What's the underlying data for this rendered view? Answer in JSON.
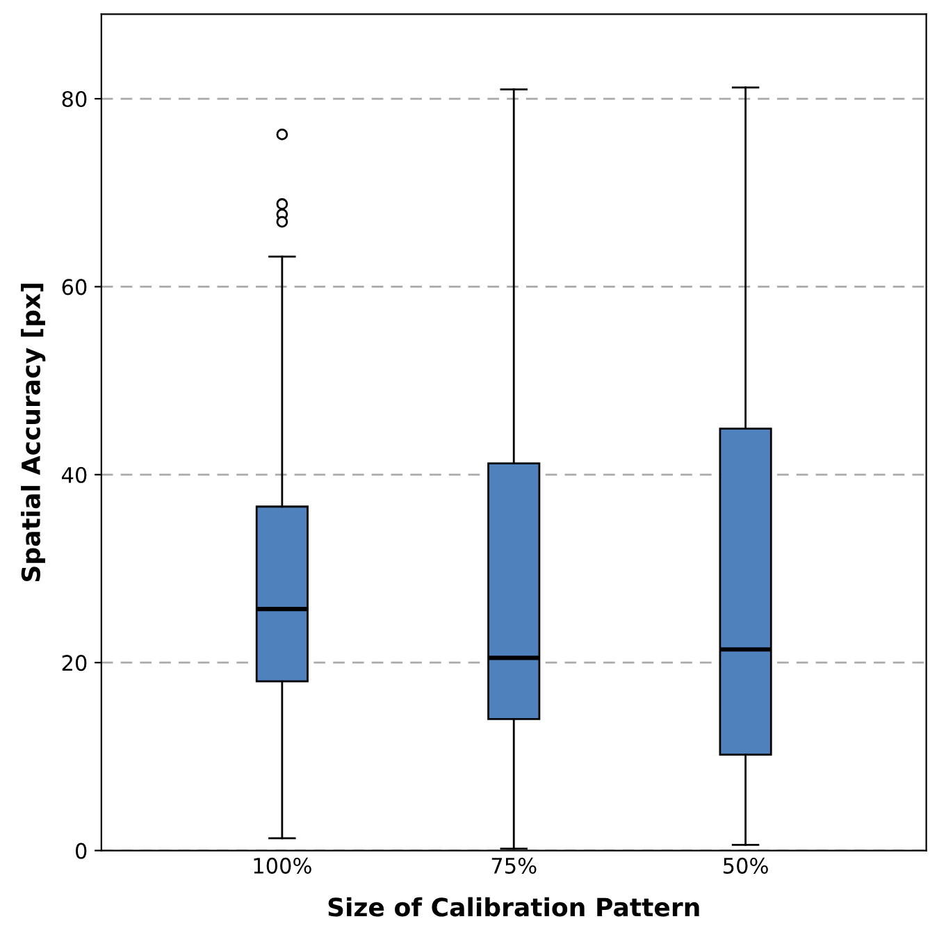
{
  "chart_data": {
    "type": "box",
    "xlabel": "Size of Calibration Pattern",
    "ylabel": "Spatial Accuracy [px]",
    "categories": [
      "100%",
      "75%",
      "50%"
    ],
    "boxes": [
      {
        "low": 1.3,
        "q1": 18.0,
        "median": 25.7,
        "q3": 36.6,
        "high": 63.2,
        "outliers": [
          76.2,
          68.8,
          67.7,
          66.9
        ]
      },
      {
        "low": 0.2,
        "q1": 14.0,
        "median": 20.5,
        "q3": 41.2,
        "high": 81.0
      },
      {
        "low": 0.6,
        "q1": 10.2,
        "median": 21.4,
        "q3": 44.9,
        "high": 81.2
      }
    ],
    "color": "#4f81bd",
    "ylim": [
      0,
      89
    ],
    "yticks": [
      0,
      20,
      40,
      60,
      80
    ],
    "grid": "y",
    "line_style": "dashed"
  }
}
